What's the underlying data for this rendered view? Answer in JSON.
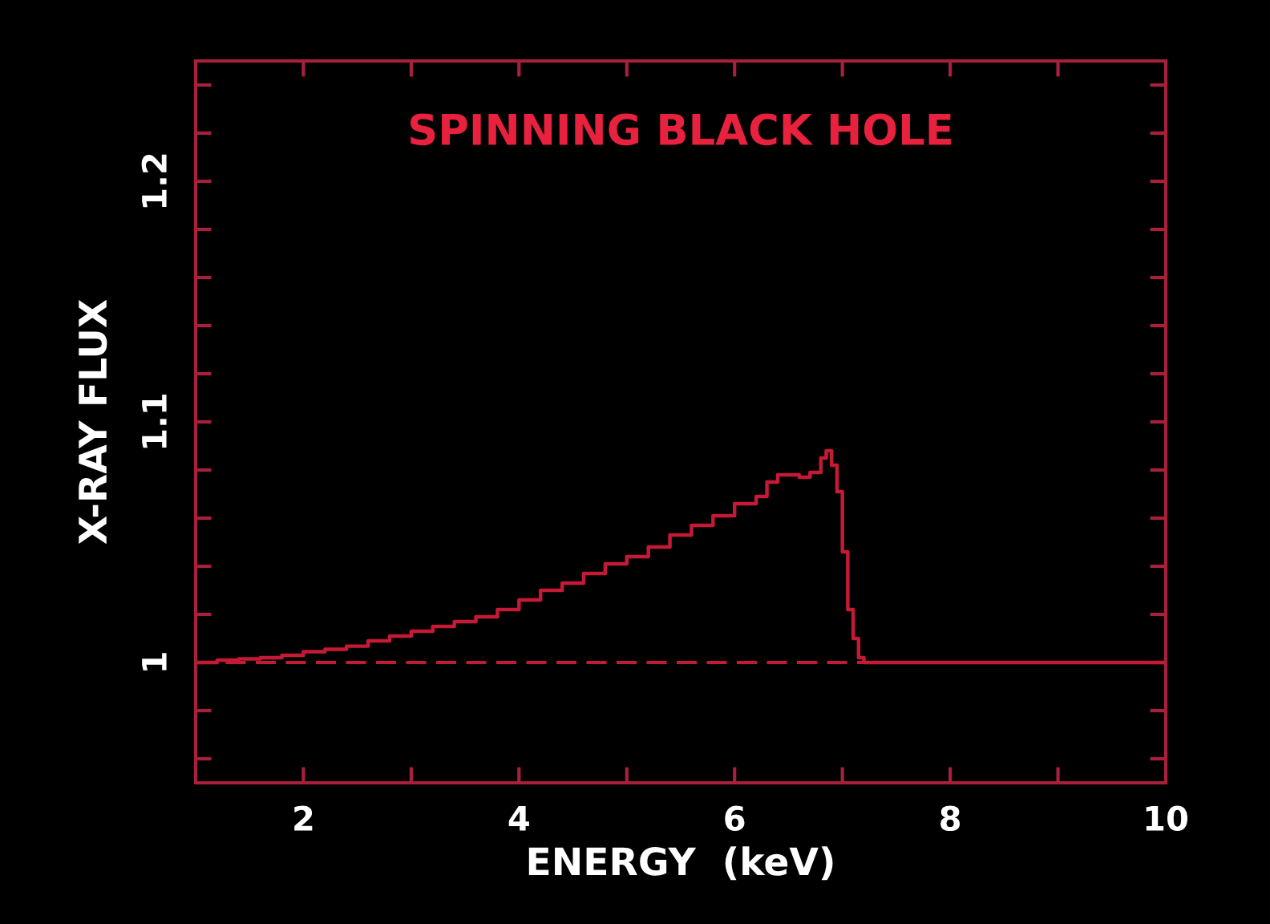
{
  "chart_data": {
    "type": "step",
    "title": "SPINNING BLACK HOLE",
    "xlabel": "ENERGY  (keV)",
    "ylabel": "X-RAY FLUX",
    "x": [
      1.0,
      1.2,
      1.4,
      1.6,
      1.8,
      2.0,
      2.2,
      2.4,
      2.6,
      2.8,
      3.0,
      3.2,
      3.4,
      3.6,
      3.8,
      4.0,
      4.2,
      4.4,
      4.6,
      4.8,
      5.0,
      5.2,
      5.4,
      5.6,
      5.8,
      6.0,
      6.2,
      6.3,
      6.4,
      6.5,
      6.6,
      6.7,
      6.8,
      6.85,
      6.9,
      6.95,
      7.0,
      7.05,
      7.1,
      7.15,
      7.2,
      10
    ],
    "series": [
      {
        "color": "#c41a35",
        "values": [
          1.0,
          1.001,
          1.0015,
          1.002,
          1.003,
          1.0045,
          1.0055,
          1.0068,
          1.009,
          1.011,
          1.013,
          1.015,
          1.017,
          1.019,
          1.022,
          1.026,
          1.03,
          1.033,
          1.037,
          1.041,
          1.044,
          1.048,
          1.053,
          1.057,
          1.061,
          1.066,
          1.069,
          1.075,
          1.078,
          1.078,
          1.077,
          1.079,
          1.085,
          1.088,
          1.082,
          1.071,
          1.046,
          1.022,
          1.01,
          1.002,
          1.0,
          1.0
        ]
      }
    ],
    "xlim": [
      1,
      10
    ],
    "ylim": [
      0.95,
      1.25
    ],
    "xticks": [
      {
        "value": 1,
        "label": null
      },
      2,
      {
        "value": 3,
        "label": null
      },
      4,
      {
        "value": 5,
        "label": null
      },
      6,
      {
        "value": 7,
        "label": null
      },
      8,
      {
        "value": 9,
        "label": null
      },
      10
    ],
    "yticks": [
      {
        "value": 0.96,
        "label": null
      },
      {
        "value": 0.98,
        "label": null
      },
      1,
      {
        "value": 1.02,
        "label": null
      },
      {
        "value": 1.04,
        "label": null
      },
      {
        "value": 1.06,
        "label": null
      },
      {
        "value": 1.08,
        "label": null
      },
      1.1,
      {
        "value": 1.12,
        "label": null
      },
      {
        "value": 1.14,
        "label": null
      },
      {
        "value": 1.16,
        "label": null
      },
      {
        "value": 1.18,
        "label": null
      },
      1.2,
      {
        "value": 1.22,
        "label": null
      },
      {
        "value": 1.24,
        "label": null
      }
    ],
    "ref_lines": [
      {
        "axis": "y",
        "value": 1,
        "color": "#c41a35",
        "line_style": "dashed"
      }
    ],
    "line_style": "solid"
  }
}
